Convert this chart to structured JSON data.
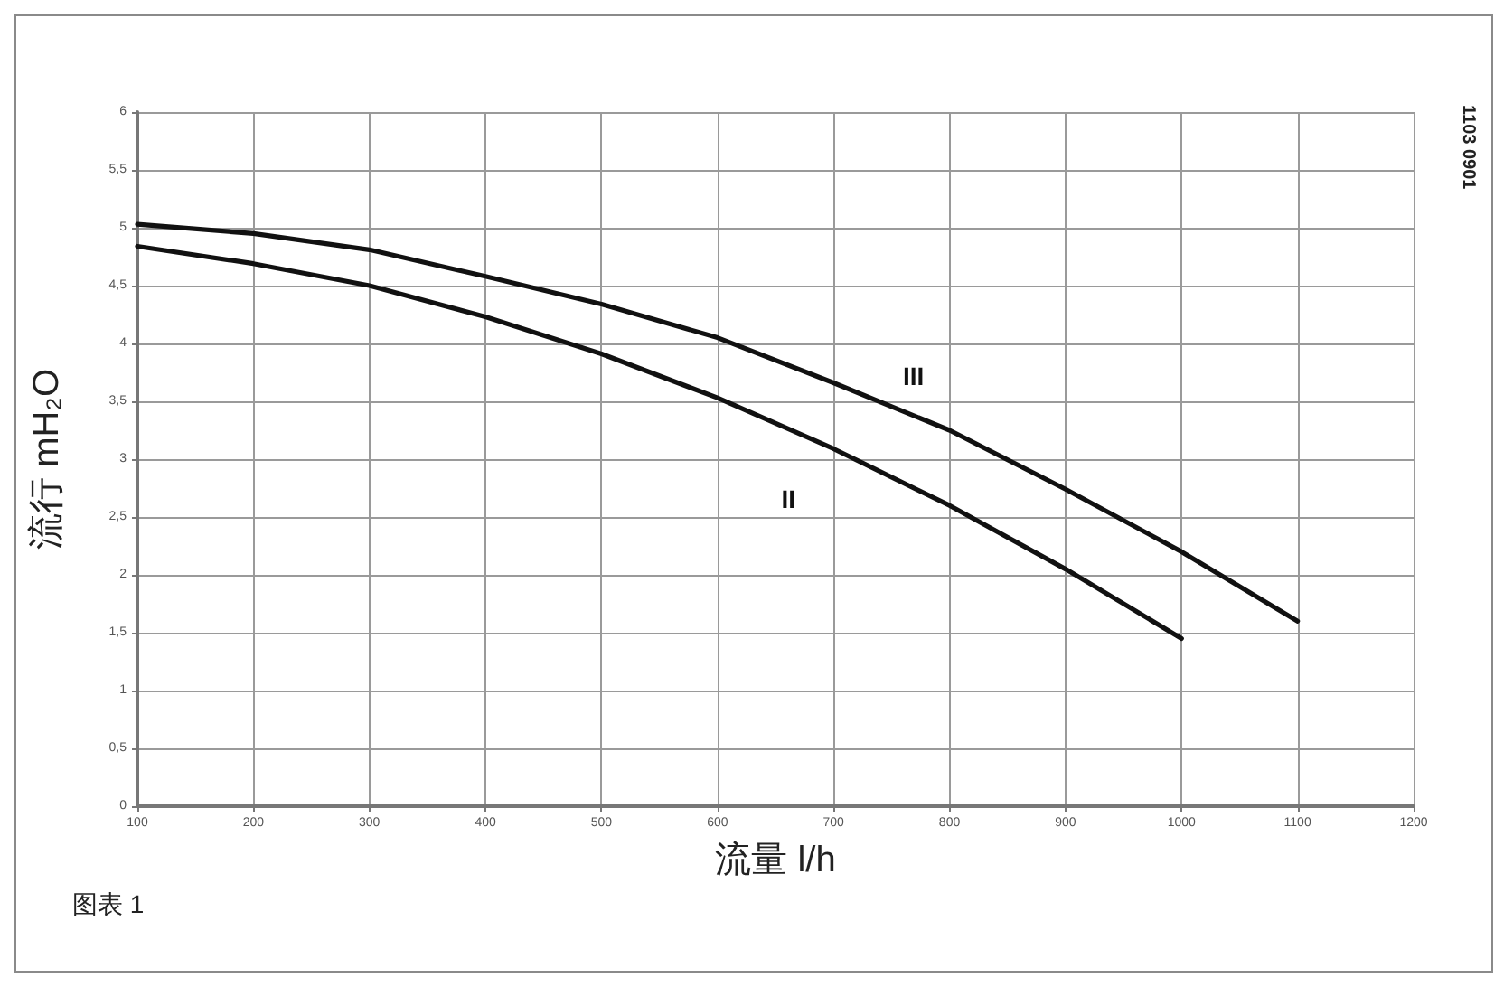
{
  "chart_data": {
    "type": "line",
    "xlabel": "流量 l/h",
    "ylabel": "流行 mH₂O",
    "xlim": [
      100,
      1200
    ],
    "xticks": [
      100,
      200,
      300,
      400,
      500,
      600,
      700,
      800,
      900,
      1000,
      1100,
      1200
    ],
    "ylim": [
      0,
      6
    ],
    "yticks": [
      0,
      {
        "value": 0.5,
        "label": "0,5"
      },
      1,
      {
        "value": 1.5,
        "label": "1,5"
      },
      2,
      {
        "value": 2.5,
        "label": "2,5"
      },
      3,
      {
        "value": 3.5,
        "label": "3,5"
      },
      4,
      {
        "value": 4.5,
        "label": "4,5"
      },
      5,
      {
        "value": 5.5,
        "label": "5,5"
      },
      6
    ],
    "grid": true,
    "marker": "none",
    "line_style": "solid",
    "series": [
      {
        "name": "II",
        "color": "#111111",
        "x": [
          100,
          200,
          300,
          400,
          500,
          600,
          700,
          800,
          900,
          1000
        ],
        "values": [
          4.84,
          4.69,
          4.5,
          4.23,
          3.91,
          3.53,
          3.09,
          2.6,
          2.05,
          1.45
        ]
      },
      {
        "name": "III",
        "color": "#111111",
        "x": [
          100,
          200,
          300,
          400,
          500,
          600,
          700,
          800,
          900,
          1000,
          1100
        ],
        "values": [
          5.03,
          4.95,
          4.81,
          4.58,
          4.34,
          4.05,
          3.66,
          3.25,
          2.74,
          2.2,
          1.6
        ]
      }
    ],
    "annotations": [
      "图表 1",
      "1103 0901"
    ]
  }
}
